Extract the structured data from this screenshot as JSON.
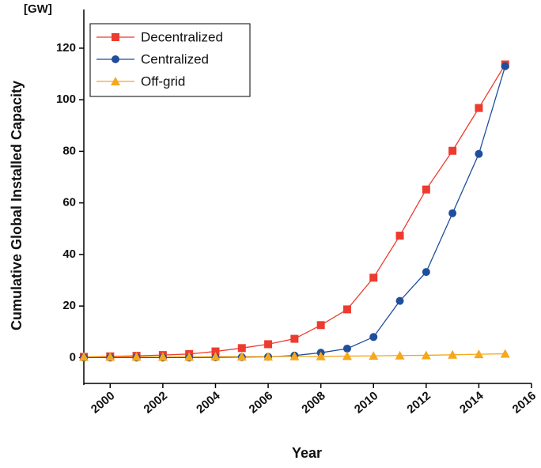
{
  "chart_data": {
    "type": "line",
    "unit_label": "[GW]",
    "x_label": "Year",
    "y_label": "Cumulative Global Installed Capacity",
    "x": [
      1999,
      2000,
      2001,
      2002,
      2003,
      2004,
      2005,
      2006,
      2007,
      2008,
      2009,
      2010,
      2011,
      2012,
      2013,
      2014,
      2015
    ],
    "series": [
      {
        "name": "Decentralized",
        "color": "#ee3b2f",
        "marker": "square",
        "values": [
          0.3,
          0.5,
          0.7,
          1.0,
          1.4,
          2.4,
          3.7,
          5.2,
          7.3,
          12.6,
          18.7,
          31,
          47.3,
          65.2,
          80.2,
          96.8,
          113.7
        ]
      },
      {
        "name": "Centralized",
        "color": "#1f4e9c",
        "marker": "circle",
        "values": [
          0,
          0,
          0,
          0,
          0,
          0.1,
          0.2,
          0.3,
          0.8,
          1.9,
          3.5,
          8,
          22,
          33.2,
          56,
          79,
          113
        ]
      },
      {
        "name": "Off-grid",
        "color": "#f5a81c",
        "marker": "triangle",
        "values": [
          0.3,
          0.3,
          0.3,
          0.3,
          0.3,
          0.4,
          0.4,
          0.4,
          0.5,
          0.5,
          0.6,
          0.7,
          0.8,
          0.9,
          1.1,
          1.3,
          1.5
        ]
      }
    ],
    "xlim": [
      1999,
      2016
    ],
    "xticks": [
      2000,
      2002,
      2004,
      2006,
      2008,
      2010,
      2012,
      2014,
      2016
    ],
    "ylim": [
      -10,
      135
    ],
    "yticks": [
      0,
      20,
      40,
      60,
      80,
      100,
      120
    ],
    "legend": "top-left"
  }
}
